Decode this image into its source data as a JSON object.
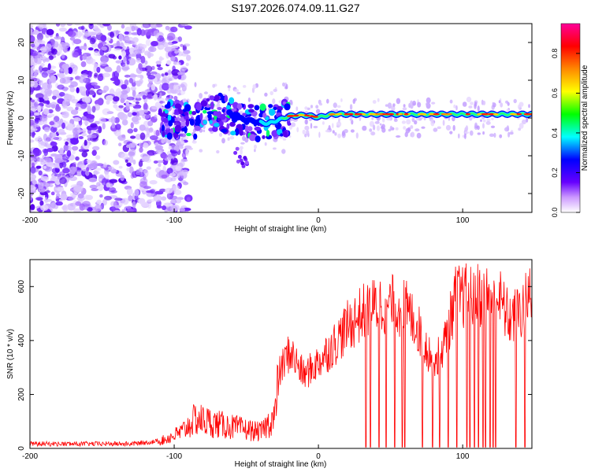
{
  "title": "S197.2026.074.09.11.G27",
  "chart_data": [
    {
      "type": "heatmap",
      "xlabel": "Height of straight line (km)",
      "ylabel": "Frequency (Hz)",
      "xlim": [
        -200,
        148
      ],
      "ylim": [
        -25,
        25
      ],
      "xticks": [
        -200,
        -100,
        0,
        100
      ],
      "yticks": [
        -20,
        -10,
        0,
        10,
        20
      ],
      "colorbar": {
        "label": "Normalized spectral amplitude",
        "range": [
          0,
          0.95
        ],
        "ticks": [
          "0.0",
          "0.2",
          "0.4",
          "0.6",
          "0.8"
        ],
        "colors": [
          "#ffffff",
          "#6600ff",
          "#0000ff",
          "#00ffff",
          "#00ff00",
          "#ffff00",
          "#ff8800",
          "#ff0000",
          "#ff0099"
        ]
      },
      "ridge": {
        "description_x_start": -110,
        "freq_hz": [
          {
            "x": -110,
            "f": 0.0
          },
          {
            "x": -90,
            "f": -1.0
          },
          {
            "x": -70,
            "f": 1.5
          },
          {
            "x": -50,
            "f": -0.5
          },
          {
            "x": -35,
            "f": -1.5
          },
          {
            "x": -20,
            "f": 0.5
          },
          {
            "x": -10,
            "f": 0.8
          },
          {
            "x": 0,
            "f": 0.2
          },
          {
            "x": 10,
            "f": 1.0
          },
          {
            "x": 50,
            "f": 1.0
          },
          {
            "x": 100,
            "f": 1.0
          },
          {
            "x": 148,
            "f": 1.0
          }
        ]
      }
    },
    {
      "type": "line",
      "xlabel": "Height of straight line (km)",
      "ylabel": "SNR (10 * v/v)",
      "xlim": [
        -200,
        148
      ],
      "ylim": [
        0,
        700
      ],
      "xticks": [
        -200,
        -100,
        0,
        100
      ],
      "yticks": [
        0,
        200,
        400,
        600
      ],
      "color": "#ff0000",
      "envelope": [
        {
          "x": -200,
          "y": 15
        },
        {
          "x": -130,
          "y": 15
        },
        {
          "x": -110,
          "y": 25
        },
        {
          "x": -95,
          "y": 60
        },
        {
          "x": -85,
          "y": 110
        },
        {
          "x": -70,
          "y": 90
        },
        {
          "x": -50,
          "y": 70
        },
        {
          "x": -40,
          "y": 60
        },
        {
          "x": -30,
          "y": 120
        },
        {
          "x": -27,
          "y": 280
        },
        {
          "x": -20,
          "y": 360
        },
        {
          "x": -10,
          "y": 270
        },
        {
          "x": 0,
          "y": 320
        },
        {
          "x": 10,
          "y": 380
        },
        {
          "x": 20,
          "y": 450
        },
        {
          "x": 30,
          "y": 500
        },
        {
          "x": 45,
          "y": 540
        },
        {
          "x": 60,
          "y": 520
        },
        {
          "x": 68,
          "y": 460
        },
        {
          "x": 75,
          "y": 370
        },
        {
          "x": 82,
          "y": 330
        },
        {
          "x": 88,
          "y": 400
        },
        {
          "x": 95,
          "y": 560
        },
        {
          "x": 110,
          "y": 570
        },
        {
          "x": 125,
          "y": 560
        },
        {
          "x": 132,
          "y": 480
        },
        {
          "x": 140,
          "y": 500
        },
        {
          "x": 148,
          "y": 580
        }
      ],
      "dropouts_x": [
        33,
        36,
        42,
        47,
        53,
        58,
        60,
        72,
        79,
        84,
        90,
        96,
        103,
        105,
        108,
        111,
        114,
        116,
        119,
        121,
        123,
        137,
        143
      ]
    }
  ]
}
